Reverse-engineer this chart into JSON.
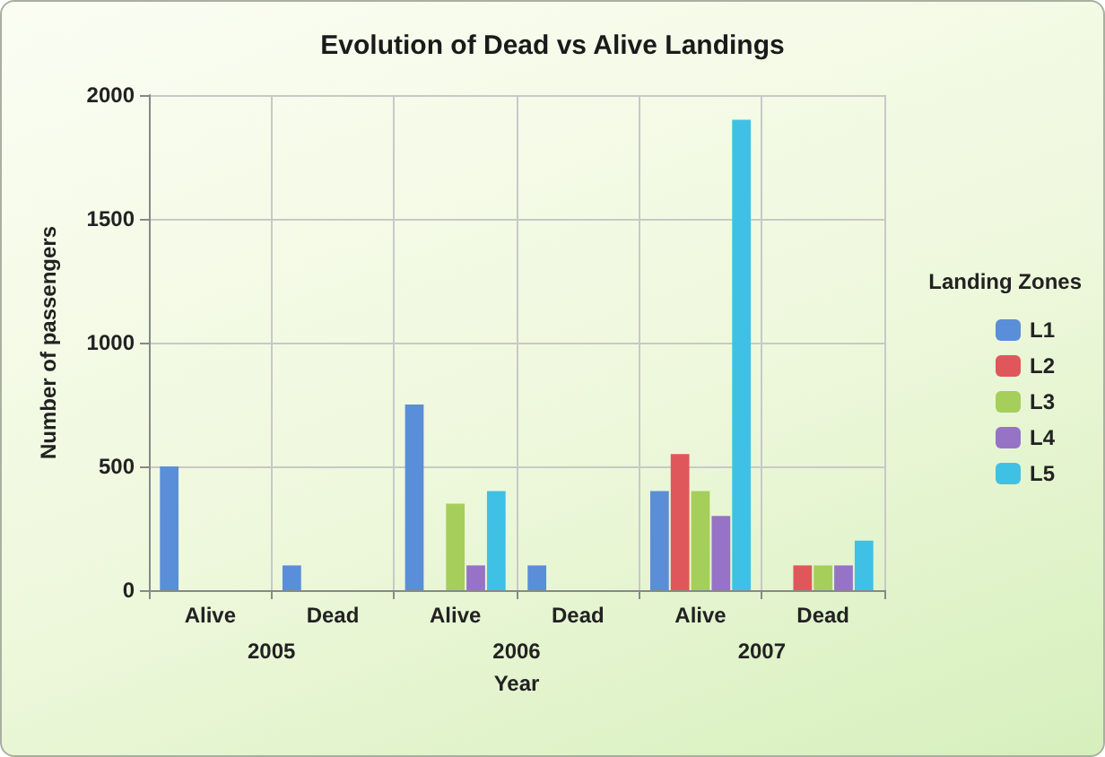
{
  "chart_data": {
    "type": "bar",
    "title": "Evolution of Dead vs Alive Landings",
    "xlabel": "Year",
    "ylabel": "Number of passengers",
    "legend_title": "Landing Zones",
    "categories": [
      "Alive",
      "Dead",
      "Alive",
      "Dead",
      "Alive",
      "Dead"
    ],
    "annotations": [
      "2005",
      "2006",
      "2007"
    ],
    "series": [
      {
        "name": "L1",
        "color": "#5b8ed8",
        "values": [
          500,
          100,
          750,
          100,
          400,
          0
        ]
      },
      {
        "name": "L2",
        "color": "#e0575b",
        "values": [
          0,
          0,
          0,
          0,
          550,
          100
        ]
      },
      {
        "name": "L3",
        "color": "#a5cf5a",
        "values": [
          0,
          0,
          350,
          0,
          400,
          100
        ]
      },
      {
        "name": "L4",
        "color": "#9673c6",
        "values": [
          0,
          0,
          100,
          0,
          300,
          100
        ]
      },
      {
        "name": "L5",
        "color": "#3fc1e6",
        "values": [
          0,
          0,
          400,
          0,
          1900,
          200
        ]
      }
    ],
    "ylim": [
      0,
      2000
    ],
    "yticks": [
      0,
      500,
      1000,
      1500,
      2000
    ],
    "grid": true,
    "legend": "right"
  }
}
